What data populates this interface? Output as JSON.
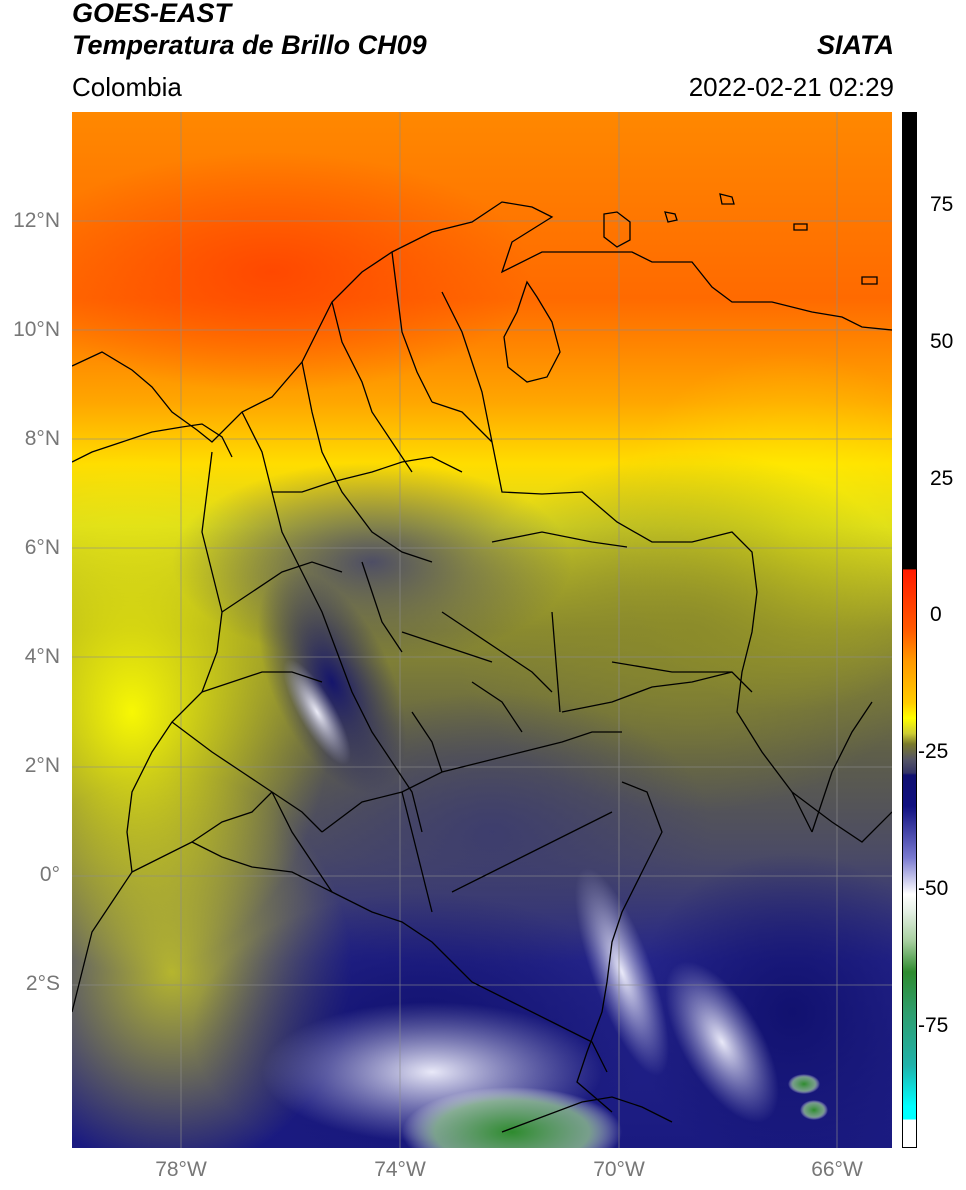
{
  "header": {
    "satellite": "GOES-EAST",
    "product": "Temperatura de Brillo CH09",
    "region": "Colombia",
    "agency": "SIATA",
    "timestamp": "2022-02-21 02:29"
  },
  "map": {
    "lat_range": [
      -5,
      14
    ],
    "lon_range": [
      -80,
      -65
    ],
    "lat_ticks": [
      "12°N",
      "10°N",
      "8°N",
      "6°N",
      "4°N",
      "2°N",
      "0°",
      "2°S"
    ],
    "lon_ticks": [
      "78°W",
      "74°W",
      "70°W",
      "66°W"
    ],
    "grid": true,
    "borders": "black"
  },
  "colorbar": {
    "ticks": [
      "75",
      "50",
      "25",
      "0",
      "-25",
      "-50",
      "-75"
    ],
    "range": [
      -95,
      90
    ],
    "colors": {
      "black": "#000000",
      "red": "#ff1a00",
      "orange": "#ff9900",
      "yellow": "#ffff00",
      "olive": "#7a7a2a",
      "gray": "#555566",
      "navy": "#101070",
      "white": "#ffffff",
      "green": "#2e8b2e",
      "teal": "#20b2aa",
      "cyan": "#00ffff"
    }
  }
}
